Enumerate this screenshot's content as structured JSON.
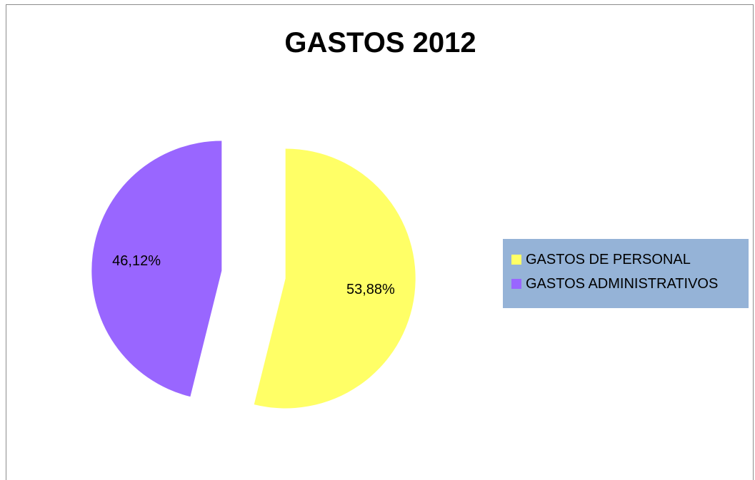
{
  "chart_data": {
    "type": "pie",
    "title": "GASTOS 2012",
    "slices": [
      {
        "name": "GASTOS DE PERSONAL",
        "value": 53.88,
        "label": "53,88%",
        "color": "#ffff66"
      },
      {
        "name": "GASTOS ADMINISTRATIVOS",
        "value": 46.12,
        "label": "46,12%",
        "color": "#9966ff"
      }
    ],
    "legend_position": "right",
    "exploded": true
  }
}
